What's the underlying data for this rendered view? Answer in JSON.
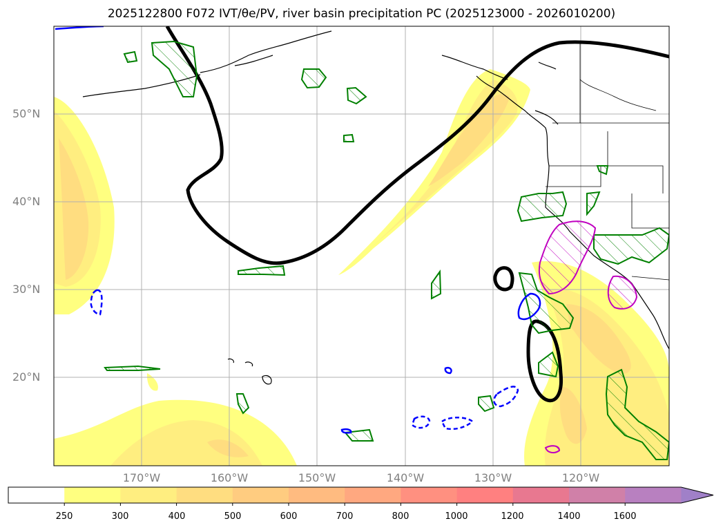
{
  "title": "2025122800 F072 IVT/θe/PV, river basin precipitation PC (2025123000 - 2026010200)",
  "map": {
    "lat_labels": [
      "50°N",
      "40°N",
      "30°N",
      "20°N"
    ],
    "lon_labels": [
      "170°W",
      "160°W",
      "150°W",
      "140°W",
      "130°W",
      "120°W"
    ],
    "gridlines": true
  },
  "colorbar": {
    "ticks": [
      "250",
      "300",
      "400",
      "500",
      "600",
      "700",
      "800",
      "1000",
      "1200",
      "1400",
      "1600"
    ],
    "colors": [
      "#ffffff",
      "#ffff80",
      "#ffee80",
      "#ffdd80",
      "#ffcc80",
      "#ffbb80",
      "#ffa880",
      "#ff9080",
      "#ff8080",
      "#e87890",
      "#d080a8",
      "#b880c0",
      "#a080c8"
    ],
    "extend": "max"
  },
  "contour_colors": {
    "pv_positive": "#008000",
    "theta_e_low": "#0000ff",
    "theta_e_high": "#c000c0",
    "pv_thick": "#000000"
  }
}
